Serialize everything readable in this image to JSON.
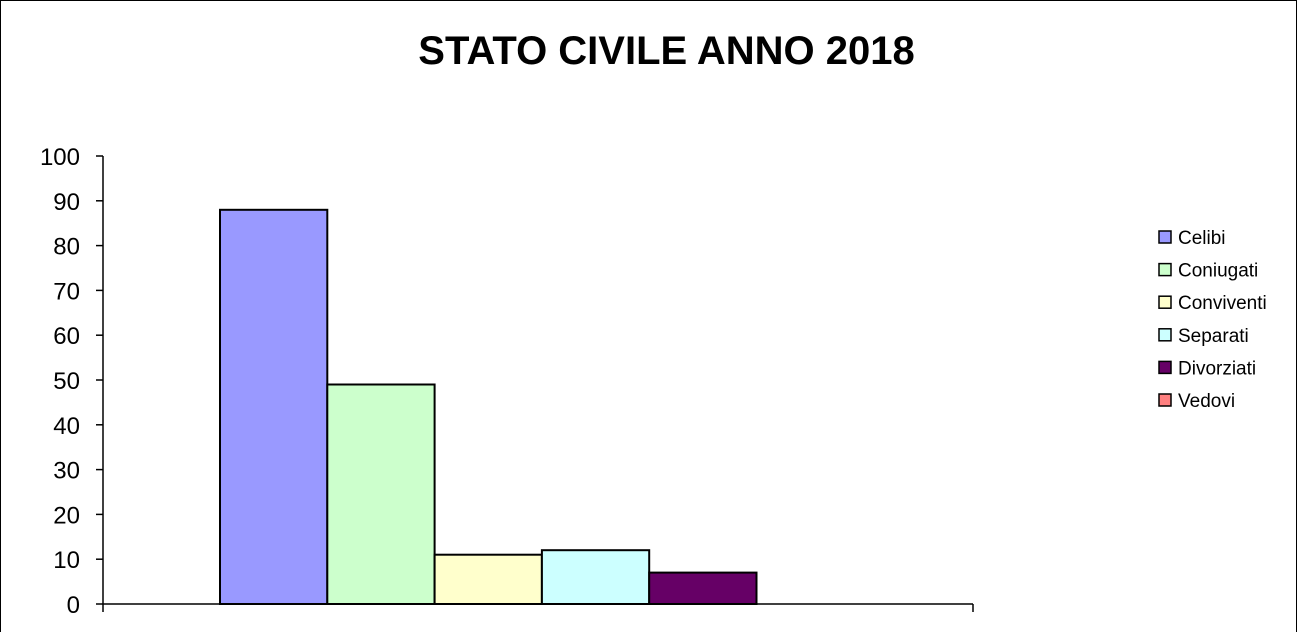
{
  "chart_data": {
    "type": "bar",
    "title": "STATO CIVILE ANNO 2018",
    "xlabel": "",
    "ylabel": "",
    "ylim": [
      0,
      100
    ],
    "yticks": [
      0,
      10,
      20,
      30,
      40,
      50,
      60,
      70,
      80,
      90,
      100
    ],
    "grid": false,
    "legend_position": "right",
    "series": [
      {
        "name": "Celibi",
        "value": 88,
        "color": "#9999ff"
      },
      {
        "name": "Coniugati",
        "value": 49,
        "color": "#ccffcc"
      },
      {
        "name": "Conviventi",
        "value": 11,
        "color": "#ffffcc"
      },
      {
        "name": "Separati",
        "value": 12,
        "color": "#ccffff"
      },
      {
        "name": "Divorziati",
        "value": 7,
        "color": "#660066"
      },
      {
        "name": "Vedovi",
        "value": 0,
        "color": "#ff8080"
      }
    ]
  }
}
